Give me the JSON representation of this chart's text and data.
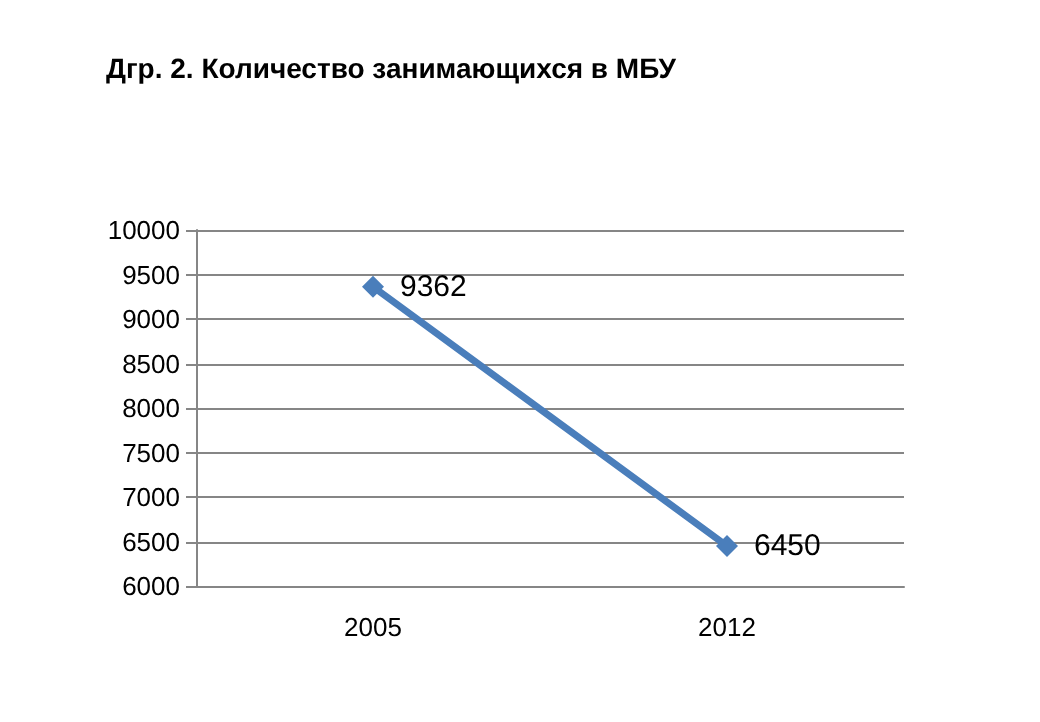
{
  "chart_data": {
    "type": "line",
    "title": "Дгр. 2. Количество занимающихся в МБУ",
    "categories": [
      "2005",
      "2012"
    ],
    "series": [
      {
        "color": "#4a7ebb",
        "values": [
          9362,
          6450
        ]
      }
    ],
    "ylim": [
      6000,
      10000
    ],
    "yticks": [
      6000,
      6500,
      7000,
      7500,
      8000,
      8500,
      9000,
      9500,
      10000
    ],
    "grid": "y",
    "marker": "diamond",
    "line_style": "solid",
    "data_labels": true
  }
}
